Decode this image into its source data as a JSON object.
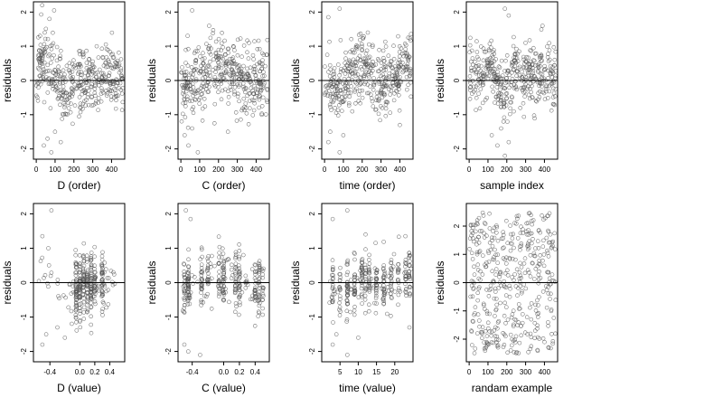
{
  "chart_data": [
    {
      "type": "scatter",
      "title": "",
      "xlabel": "D (order)",
      "ylabel": "residuals",
      "xlim": [
        -15,
        470
      ],
      "ylim": [
        -2.3,
        2.3
      ],
      "xticks": [
        0,
        100,
        200,
        300,
        400
      ],
      "yticks": [
        -2,
        -1,
        0,
        1,
        2
      ],
      "reference_line_y": 0,
      "grid": false,
      "legend": "none",
      "points": {
        "n": 420,
        "x_range": [
          0,
          460
        ],
        "seed": 11,
        "spread": 0.48,
        "trend": [
          [
            0,
            0.2
          ],
          [
            30,
            0.5
          ],
          [
            100,
            0.35
          ],
          [
            160,
            -0.35
          ],
          [
            210,
            0.1
          ],
          [
            280,
            -0.1
          ],
          [
            350,
            0
          ],
          [
            460,
            0.1
          ]
        ],
        "extra": [
          [
            40,
            -1.9
          ],
          [
            60,
            -1.7
          ],
          [
            80,
            -2.1
          ],
          [
            100,
            -1.5
          ],
          [
            130,
            -1.8
          ],
          [
            70,
            1.8
          ],
          [
            95,
            2.05
          ],
          [
            45,
            1.4
          ]
        ]
      }
    },
    {
      "type": "scatter",
      "title": "",
      "xlabel": "C (order)",
      "ylabel": "residuals",
      "xlim": [
        -15,
        470
      ],
      "ylim": [
        -2.3,
        2.3
      ],
      "xticks": [
        0,
        100,
        200,
        300,
        400
      ],
      "yticks": [
        -2,
        -1,
        0,
        1,
        2
      ],
      "reference_line_y": 0,
      "grid": false,
      "legend": "none",
      "points": {
        "n": 420,
        "x_range": [
          0,
          460
        ],
        "seed": 23,
        "spread": 0.48,
        "trend": [
          [
            0,
            -0.2
          ],
          [
            80,
            0.1
          ],
          [
            180,
            0.5
          ],
          [
            260,
            0.3
          ],
          [
            340,
            -0.1
          ],
          [
            460,
            0.1
          ]
        ],
        "extra": [
          [
            20,
            -1.6
          ],
          [
            40,
            -1.9
          ],
          [
            90,
            -2.1
          ],
          [
            60,
            -1.4
          ],
          [
            250,
            -1.5
          ],
          [
            60,
            2.05
          ],
          [
            150,
            1.6
          ]
        ]
      }
    },
    {
      "type": "scatter",
      "title": "",
      "xlabel": "time (order)",
      "ylabel": "residuals",
      "xlim": [
        -15,
        470
      ],
      "ylim": [
        -2.3,
        2.3
      ],
      "xticks": [
        0,
        100,
        200,
        300,
        400
      ],
      "yticks": [
        -2,
        -1,
        0,
        1,
        2
      ],
      "reference_line_y": 0,
      "grid": false,
      "legend": "none",
      "points": {
        "n": 420,
        "x_range": [
          0,
          460
        ],
        "seed": 37,
        "spread": 0.45,
        "trend": [
          [
            0,
            -0.1
          ],
          [
            60,
            -0.4
          ],
          [
            120,
            0.1
          ],
          [
            200,
            0.45
          ],
          [
            300,
            -0.2
          ],
          [
            380,
            0.1
          ],
          [
            460,
            0.6
          ]
        ],
        "extra": [
          [
            20,
            -1.8
          ],
          [
            30,
            -1.5
          ],
          [
            80,
            -2.1
          ],
          [
            100,
            -1.6
          ],
          [
            400,
            -1.3
          ],
          [
            80,
            2.1
          ],
          [
            230,
            1.4
          ],
          [
            20,
            1.85
          ]
        ]
      }
    },
    {
      "type": "scatter",
      "title": "",
      "xlabel": "sample index",
      "ylabel": "residuals",
      "xlim": [
        -15,
        470
      ],
      "ylim": [
        -2.3,
        2.3
      ],
      "xticks": [
        0,
        100,
        200,
        300,
        400
      ],
      "yticks": [
        -2,
        -1,
        0,
        1,
        2
      ],
      "reference_line_y": 0,
      "grid": false,
      "legend": "none",
      "points": {
        "n": 420,
        "x_range": [
          0,
          460
        ],
        "seed": 53,
        "spread": 0.45,
        "trend": [
          [
            0,
            0.3
          ],
          [
            60,
            0.1
          ],
          [
            120,
            0.4
          ],
          [
            180,
            -0.4
          ],
          [
            240,
            0.2
          ],
          [
            320,
            0.1
          ],
          [
            400,
            0.3
          ],
          [
            460,
            0
          ]
        ],
        "extra": [
          [
            120,
            -1.6
          ],
          [
            150,
            -1.9
          ],
          [
            190,
            -2.2
          ],
          [
            210,
            -1.8
          ],
          [
            170,
            -1.4
          ],
          [
            190,
            2.1
          ],
          [
            210,
            1.9
          ],
          [
            390,
            1.6
          ]
        ]
      }
    },
    {
      "type": "scatter",
      "title": "",
      "xlabel": "D (value)",
      "ylabel": "residuals",
      "xlim": [
        -0.62,
        0.6
      ],
      "ylim": [
        -2.3,
        2.3
      ],
      "xticks": [
        -0.4,
        0,
        0.2,
        0.4
      ],
      "xticklabels": [
        "-0.4",
        "0.0",
        "0.2",
        "0.4"
      ],
      "yticks": [
        -2,
        -1,
        0,
        1,
        2
      ],
      "reference_line_y": 0,
      "grid": false,
      "legend": "none",
      "points": {
        "n": 340,
        "x_range": [
          -0.55,
          0.5
        ],
        "seed": 71,
        "spread": 0.45,
        "cluster_x": [
          -0.05,
          0,
          0.05,
          0.1,
          0.15,
          0.2,
          0.3
        ],
        "trend": [
          [
            -0.55,
            0.3
          ],
          [
            -0.3,
            0
          ],
          [
            0,
            -0.1
          ],
          [
            0.5,
            0
          ]
        ],
        "extra": [
          [
            -0.5,
            -1.8
          ],
          [
            -0.45,
            -1.5
          ],
          [
            -0.38,
            2.1
          ],
          [
            -0.3,
            -1.3
          ],
          [
            -0.5,
            1.35
          ],
          [
            -0.2,
            -1.6
          ]
        ]
      }
    },
    {
      "type": "scatter",
      "title": "",
      "xlabel": "C (value)",
      "ylabel": "residuals",
      "xlim": [
        -0.58,
        0.58
      ],
      "ylim": [
        -2.3,
        2.3
      ],
      "xticks": [
        -0.4,
        0,
        0.2,
        0.4
      ],
      "xticklabels": [
        "-0.4",
        "0.0",
        "0.2",
        "0.4"
      ],
      "yticks": [
        -2,
        -1,
        0,
        1,
        2
      ],
      "reference_line_y": 0,
      "grid": false,
      "legend": "none",
      "points": {
        "n": 340,
        "x_range": [
          -0.52,
          0.52
        ],
        "seed": 89,
        "spread": 0.4,
        "cluster_x": [
          -0.5,
          -0.45,
          -0.28,
          -0.2,
          -0.06,
          0.0,
          0.15,
          0.2,
          0.4,
          0.45,
          0.5
        ],
        "trend": [
          [
            -0.5,
            -0.2
          ],
          [
            -0.2,
            0.2
          ],
          [
            0,
            0.2
          ],
          [
            0.5,
            -0.1
          ]
        ],
        "extra": [
          [
            -0.5,
            -1.8
          ],
          [
            -0.45,
            -2.0
          ],
          [
            -0.3,
            -2.1
          ],
          [
            -0.48,
            2.1
          ],
          [
            -0.42,
            1.85
          ]
        ]
      }
    },
    {
      "type": "scatter",
      "title": "",
      "xlabel": "time (value)",
      "ylabel": "residuals",
      "xlim": [
        0,
        25
      ],
      "ylim": [
        -2.3,
        2.3
      ],
      "xticks": [
        5,
        10,
        15,
        20
      ],
      "yticks": [
        -2,
        -1,
        0,
        1,
        2
      ],
      "reference_line_y": 0,
      "grid": false,
      "legend": "none",
      "points": {
        "n": 340,
        "x_range": [
          2,
          24.5
        ],
        "seed": 101,
        "spread": 0.4,
        "cluster_x": [
          3,
          5,
          7,
          9,
          11,
          12,
          13,
          15,
          17,
          19,
          21,
          23,
          24
        ],
        "trend": [
          [
            2,
            -0.1
          ],
          [
            7,
            -0.3
          ],
          [
            12,
            0.2
          ],
          [
            17,
            -0.1
          ],
          [
            24,
            0.4
          ]
        ],
        "extra": [
          [
            3,
            -1.8
          ],
          [
            4,
            -1.5
          ],
          [
            7,
            -2.1
          ],
          [
            10,
            -1.6
          ],
          [
            24,
            -1.3
          ],
          [
            7,
            2.1
          ],
          [
            3,
            1.85
          ],
          [
            12,
            1.4
          ]
        ]
      }
    },
    {
      "type": "scatter",
      "title": "",
      "xlabel": "randam example",
      "ylabel": "residuals",
      "xlim": [
        -15,
        470
      ],
      "ylim": [
        -2.8,
        2.8
      ],
      "xticks": [
        0,
        100,
        200,
        300,
        400
      ],
      "yticks": [
        -2,
        -1,
        0,
        1,
        2
      ],
      "reference_line_y": 0,
      "grid": false,
      "legend": "none",
      "points": {
        "n": 420,
        "x_range": [
          0,
          460
        ],
        "seed": 131,
        "uniform": true,
        "uniform_range": [
          -2.5,
          2.5
        ],
        "extra": []
      }
    }
  ]
}
